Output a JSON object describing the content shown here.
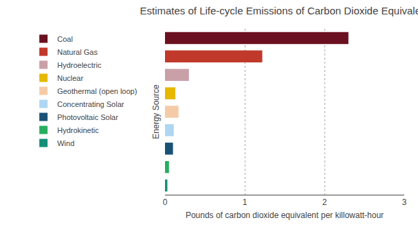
{
  "chart_data": {
    "type": "bar",
    "orientation": "horizontal",
    "title": "Estimates of Life-cycle Emissions of Carbon Dioxide Equivalent",
    "xlabel": "Pounds of carbon dioxide equivalent per killowatt-hour",
    "ylabel": "Energy Source",
    "categories": [
      "Coal",
      "Natural Gas",
      "Hydroelectric",
      "Nuclear",
      "Geothermal (open loop)",
      "Concentrating Solar",
      "Photovoltaic Solar",
      "Hydrokinetic",
      "Wind"
    ],
    "values": [
      2.3,
      1.22,
      0.3,
      0.13,
      0.17,
      0.11,
      0.1,
      0.05,
      0.03
    ],
    "colors": [
      "#6b1020",
      "#c0392b",
      "#c9a0a8",
      "#e6b800",
      "#f5cba7",
      "#aed6f1",
      "#1a5276",
      "#27ae60",
      "#148f77"
    ],
    "xlim": [
      0,
      3
    ],
    "xticks": [
      0,
      1,
      2,
      3
    ],
    "grid": true,
    "legend": "left",
    "tick_labels": "x"
  }
}
